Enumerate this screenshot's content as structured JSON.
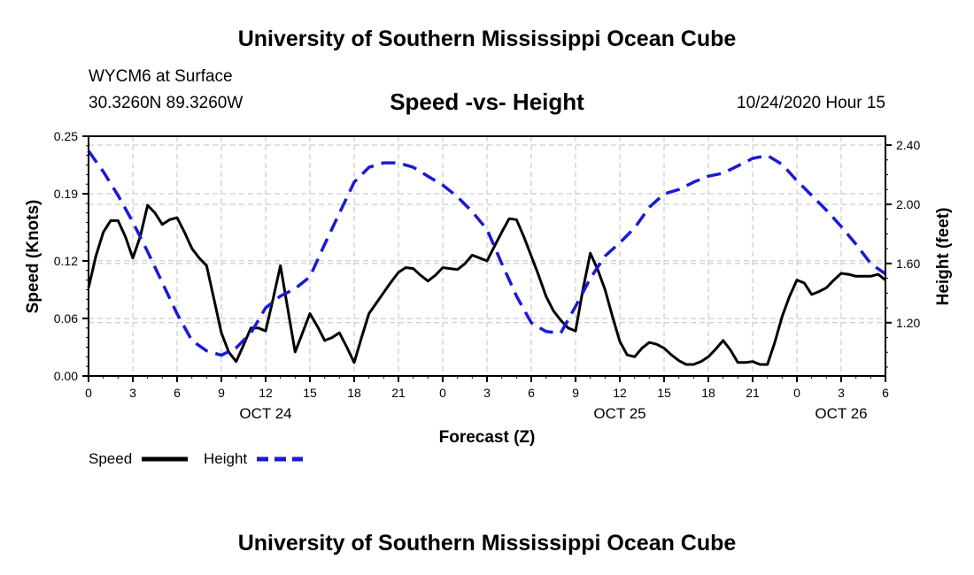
{
  "header": {
    "title": "University of Southern Mississippi Ocean Cube",
    "station": "WYCM6 at Surface",
    "coords": "30.3260N 89.3260W",
    "chart_title": "Speed -vs- Height",
    "date_hour": "10/24/2020 Hour 15"
  },
  "footer": {
    "title": "University of Southern Mississippi Ocean Cube"
  },
  "legend": {
    "speed_label": "Speed",
    "height_label": "Height"
  },
  "colors": {
    "speed": "#000000",
    "height": "#1a1ad6",
    "grid": "#c0c0c0"
  },
  "chart_data": {
    "type": "line",
    "title": "Speed -vs- Height",
    "xlabel": "Forecast (Z)",
    "ylabel": "Speed (Knots)",
    "y2label": "Height (feet)",
    "xlim": [
      0,
      54
    ],
    "ylim": [
      0,
      0.25
    ],
    "y2lim": [
      0.84,
      2.46
    ],
    "x_ticks": [
      0,
      3,
      6,
      9,
      12,
      15,
      18,
      21,
      24,
      27,
      30,
      33,
      36,
      39,
      42,
      45,
      48,
      51,
      54
    ],
    "x_tick_labels": [
      "0",
      "3",
      "6",
      "9",
      "12",
      "15",
      "18",
      "21",
      "0",
      "3",
      "6",
      "9",
      "12",
      "15",
      "18",
      "21",
      "0",
      "3",
      "6"
    ],
    "date_labels": [
      {
        "x": 12,
        "label": "OCT 24"
      },
      {
        "x": 36,
        "label": "OCT 25"
      },
      {
        "x": 51,
        "label": "OCT 26"
      }
    ],
    "y_ticks": [
      0,
      0.06,
      0.12,
      0.19,
      0.25
    ],
    "y_tick_labels": [
      "0.00",
      "0.06",
      "0.12",
      "0.19",
      "0.25"
    ],
    "y2_ticks": [
      1.2,
      1.6,
      2.0,
      2.4
    ],
    "y2_tick_labels": [
      "1.20",
      "1.60",
      "2.00",
      "2.40"
    ],
    "grid": true,
    "legend_position": "bottom-left",
    "series": [
      {
        "name": "Speed",
        "axis": "left",
        "style": "solid",
        "x": [
          0,
          0.5,
          1,
          1.5,
          2,
          2.5,
          3,
          3.5,
          4,
          4.5,
          5,
          5.5,
          6,
          6.5,
          7,
          7.5,
          8,
          8.5,
          9,
          9.5,
          10,
          10.5,
          11,
          11.5,
          12,
          12.5,
          13,
          13.5,
          14,
          14.5,
          15,
          15.5,
          16,
          16.5,
          17,
          17.5,
          18,
          18.5,
          19,
          19.5,
          20,
          20.5,
          21,
          21.5,
          22,
          22.5,
          23,
          23.5,
          24,
          24.5,
          25,
          25.5,
          26,
          26.5,
          27,
          27.5,
          28,
          28.5,
          29,
          29.5,
          30,
          30.5,
          31,
          31.5,
          32,
          32.5,
          33,
          33.5,
          34,
          34.5,
          35,
          35.5,
          36,
          36.5,
          37,
          37.5,
          38,
          38.5,
          39,
          39.5,
          40,
          40.5,
          41,
          41.5,
          42,
          42.5,
          43,
          43.5,
          44,
          44.5,
          45,
          45.5,
          46,
          46.5,
          47,
          47.5,
          48,
          48.5,
          49,
          49.5,
          50,
          50.5,
          51,
          51.5,
          52,
          52.5,
          53,
          53.5,
          54
        ],
        "y": [
          0.092,
          0.125,
          0.15,
          0.162,
          0.162,
          0.145,
          0.123,
          0.145,
          0.178,
          0.17,
          0.158,
          0.163,
          0.165,
          0.15,
          0.133,
          0.123,
          0.115,
          0.08,
          0.045,
          0.025,
          0.015,
          0.032,
          0.05,
          0.05,
          0.047,
          0.08,
          0.115,
          0.07,
          0.025,
          0.045,
          0.065,
          0.052,
          0.037,
          0.04,
          0.045,
          0.03,
          0.014,
          0.04,
          0.065,
          0.076,
          0.087,
          0.098,
          0.108,
          0.113,
          0.112,
          0.105,
          0.099,
          0.105,
          0.113,
          0.112,
          0.111,
          0.117,
          0.126,
          0.123,
          0.12,
          0.135,
          0.15,
          0.164,
          0.163,
          0.145,
          0.125,
          0.105,
          0.083,
          0.068,
          0.058,
          0.05,
          0.047,
          0.09,
          0.128,
          0.111,
          0.09,
          0.062,
          0.036,
          0.022,
          0.02,
          0.029,
          0.035,
          0.033,
          0.029,
          0.022,
          0.016,
          0.012,
          0.012,
          0.015,
          0.02,
          0.028,
          0.037,
          0.027,
          0.014,
          0.014,
          0.015,
          0.012,
          0.012,
          0.035,
          0.062,
          0.083,
          0.1,
          0.097,
          0.085,
          0.088,
          0.092,
          0.1,
          0.107,
          0.106,
          0.104,
          0.104,
          0.104,
          0.106,
          0.1
        ]
      },
      {
        "name": "Height",
        "axis": "right",
        "style": "dashed",
        "x": [
          0,
          1,
          2,
          3,
          4,
          5,
          6,
          7,
          8,
          9,
          10,
          11,
          12,
          13,
          14,
          15,
          16,
          17,
          18,
          19,
          20,
          21,
          22,
          23,
          24,
          25,
          26,
          27,
          28,
          29,
          30,
          31,
          32,
          33,
          34,
          35,
          36,
          37,
          38,
          39,
          40,
          41,
          42,
          43,
          44,
          45,
          46,
          47,
          48,
          49,
          50,
          51,
          52,
          53,
          54
        ],
        "y": [
          2.36,
          2.22,
          2.06,
          1.88,
          1.68,
          1.47,
          1.26,
          1.08,
          1.01,
          0.98,
          1.03,
          1.13,
          1.3,
          1.38,
          1.43,
          1.51,
          1.73,
          1.94,
          2.15,
          2.25,
          2.28,
          2.28,
          2.25,
          2.19,
          2.13,
          2.05,
          1.95,
          1.83,
          1.6,
          1.38,
          1.2,
          1.14,
          1.13,
          1.31,
          1.5,
          1.65,
          1.74,
          1.84,
          1.98,
          2.07,
          2.1,
          2.15,
          2.19,
          2.21,
          2.26,
          2.31,
          2.33,
          2.27,
          2.16,
          2.06,
          1.96,
          1.85,
          1.73,
          1.6,
          1.53
        ]
      }
    ]
  }
}
